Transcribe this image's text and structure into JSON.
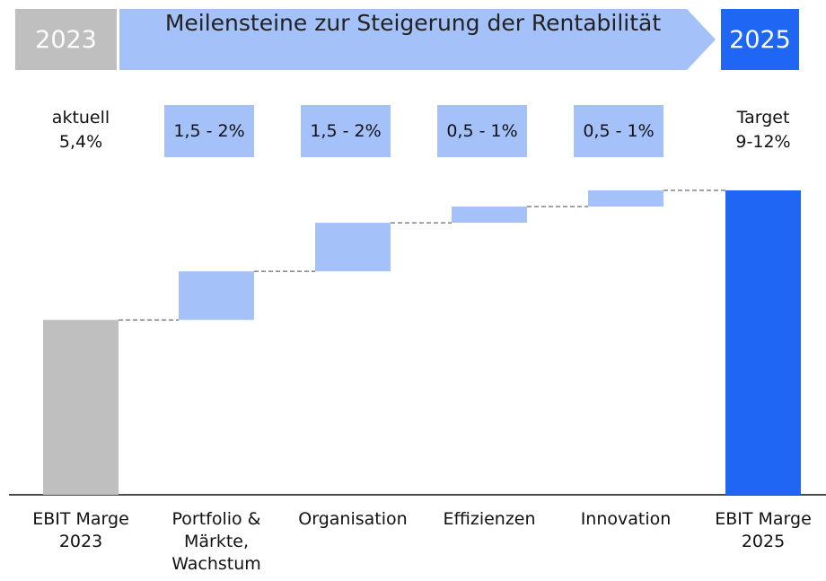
{
  "chart_data": {
    "type": "waterfall",
    "title": "Meilensteine zur Steigerung der Rentabilität",
    "header_left": "2023",
    "header_right": "2025",
    "categories": [
      "EBIT Marge\n2023",
      "Portfolio & Märkte, Wachstum",
      "Organisation",
      "Effizienzen",
      "Innovation",
      "EBIT Marge\n2025"
    ],
    "measures": [
      "absolute",
      "relative",
      "relative",
      "relative",
      "relative",
      "total"
    ],
    "values": [
      5.4,
      1.5,
      1.5,
      0.5,
      0.5,
      9.4
    ],
    "value_labels": [
      "aktuell\n5,4%",
      "1,5 - 2%",
      "1,5 - 2%",
      "0,5 - 1%",
      "0,5 - 1%",
      "Target\n9-12%"
    ],
    "colors": [
      "#bfbfbf",
      "#a4c2f9",
      "#a4c2f9",
      "#a4c2f9",
      "#a4c2f9",
      "#1f66f5"
    ]
  }
}
